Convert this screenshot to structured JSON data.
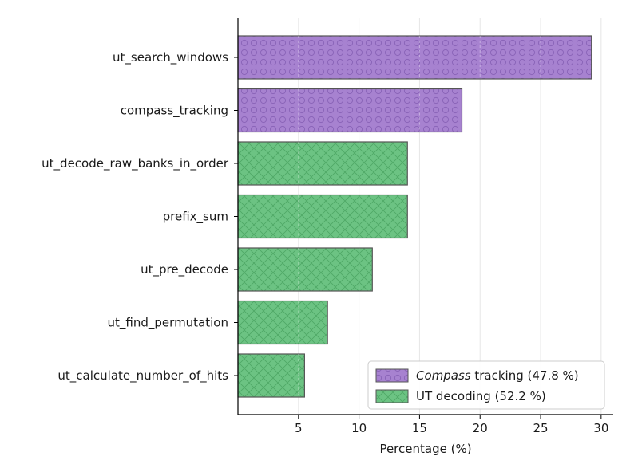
{
  "chart_data": {
    "type": "bar",
    "orientation": "horizontal",
    "categories": [
      "ut_search_windows",
      "compass_tracking",
      "ut_decode_raw_banks_in_order",
      "prefix_sum",
      "ut_pre_decode",
      "ut_find_permutation",
      "ut_calculate_number_of_hits"
    ],
    "values": [
      29.2,
      18.5,
      14.0,
      14.0,
      11.1,
      7.4,
      5.5
    ],
    "groups": [
      "compass",
      "compass",
      "ut",
      "ut",
      "ut",
      "ut",
      "ut"
    ],
    "xlabel": "Percentage (%)",
    "ylabel": "",
    "xlim": [
      0,
      31
    ],
    "xticks": [
      5,
      10,
      15,
      20,
      25,
      30
    ],
    "grid": "vertical",
    "legend_position": "bottom-right",
    "legend": [
      {
        "key": "compass",
        "label_italic": "Compass",
        "label_rest": " tracking (47.8 %)",
        "color": "#a782d0",
        "hatch": "circles"
      },
      {
        "key": "ut",
        "label_italic": "",
        "label_rest": "UT decoding (52.2 %)",
        "color": "#6cc383",
        "hatch": "crosshatch"
      }
    ]
  }
}
